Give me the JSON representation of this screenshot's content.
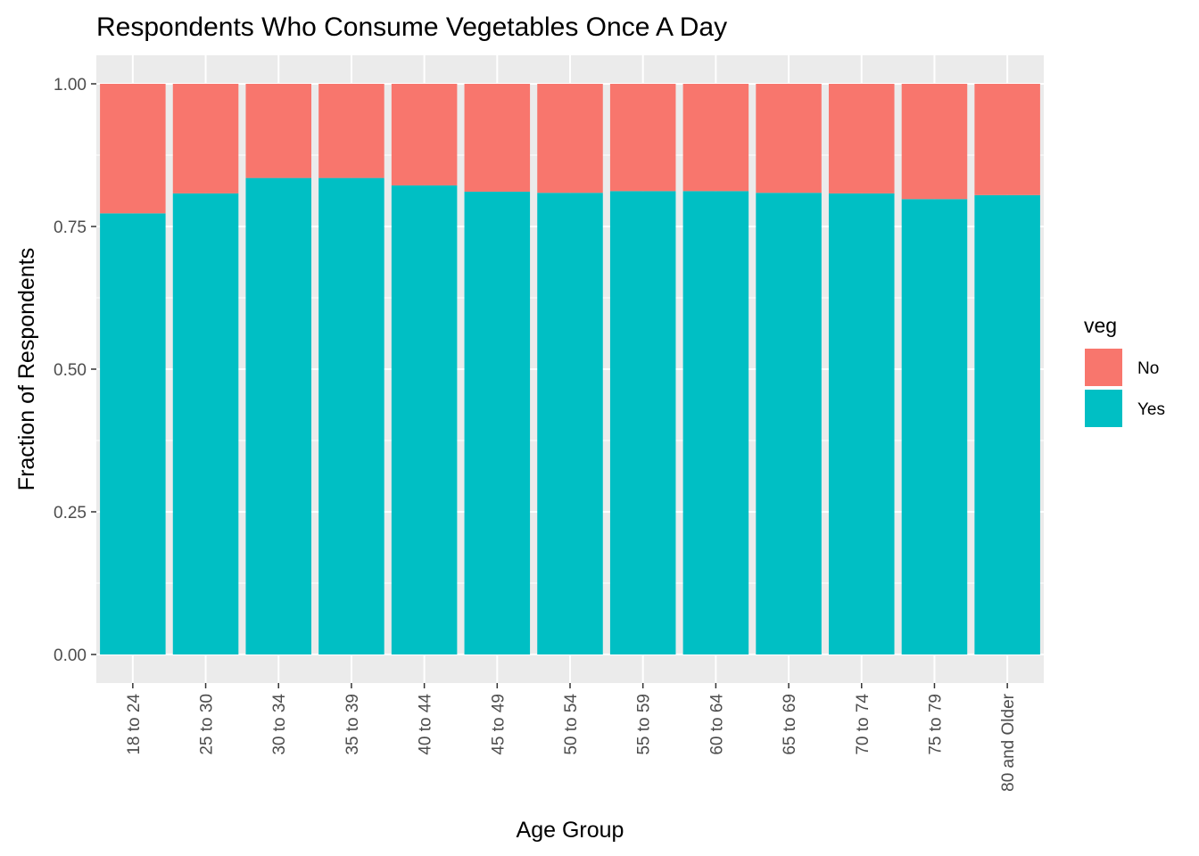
{
  "chart_data": {
    "type": "bar",
    "stacked": true,
    "title": "Respondents Who Consume Vegetables Once A Day",
    "xlabel": "Age Group",
    "ylabel": "Fraction of Respondents",
    "ylim": [
      0,
      1
    ],
    "yticks": [
      0,
      0.25,
      0.5,
      0.75,
      1
    ],
    "ytick_labels": [
      "0.00",
      "0.25",
      "0.50",
      "0.75",
      "1.00"
    ],
    "grid": true,
    "legend": {
      "title": "veg",
      "position": "right"
    },
    "categories": [
      "18 to 24",
      "25 to 30",
      "30 to 34",
      "35 to 39",
      "40 to 44",
      "45 to 49",
      "50 to 54",
      "55 to 59",
      "60 to 64",
      "65 to 69",
      "70 to 74",
      "75 to 79",
      "80 and Older"
    ],
    "series": [
      {
        "name": "Yes",
        "color": "#00BFC4",
        "values": [
          0.773,
          0.808,
          0.835,
          0.835,
          0.822,
          0.811,
          0.809,
          0.812,
          0.812,
          0.809,
          0.808,
          0.798,
          0.805
        ]
      },
      {
        "name": "No",
        "color": "#F8766D",
        "values": [
          0.227,
          0.192,
          0.165,
          0.165,
          0.178,
          0.189,
          0.191,
          0.188,
          0.188,
          0.191,
          0.192,
          0.202,
          0.195
        ]
      }
    ],
    "legend_order": [
      "No",
      "Yes"
    ]
  }
}
